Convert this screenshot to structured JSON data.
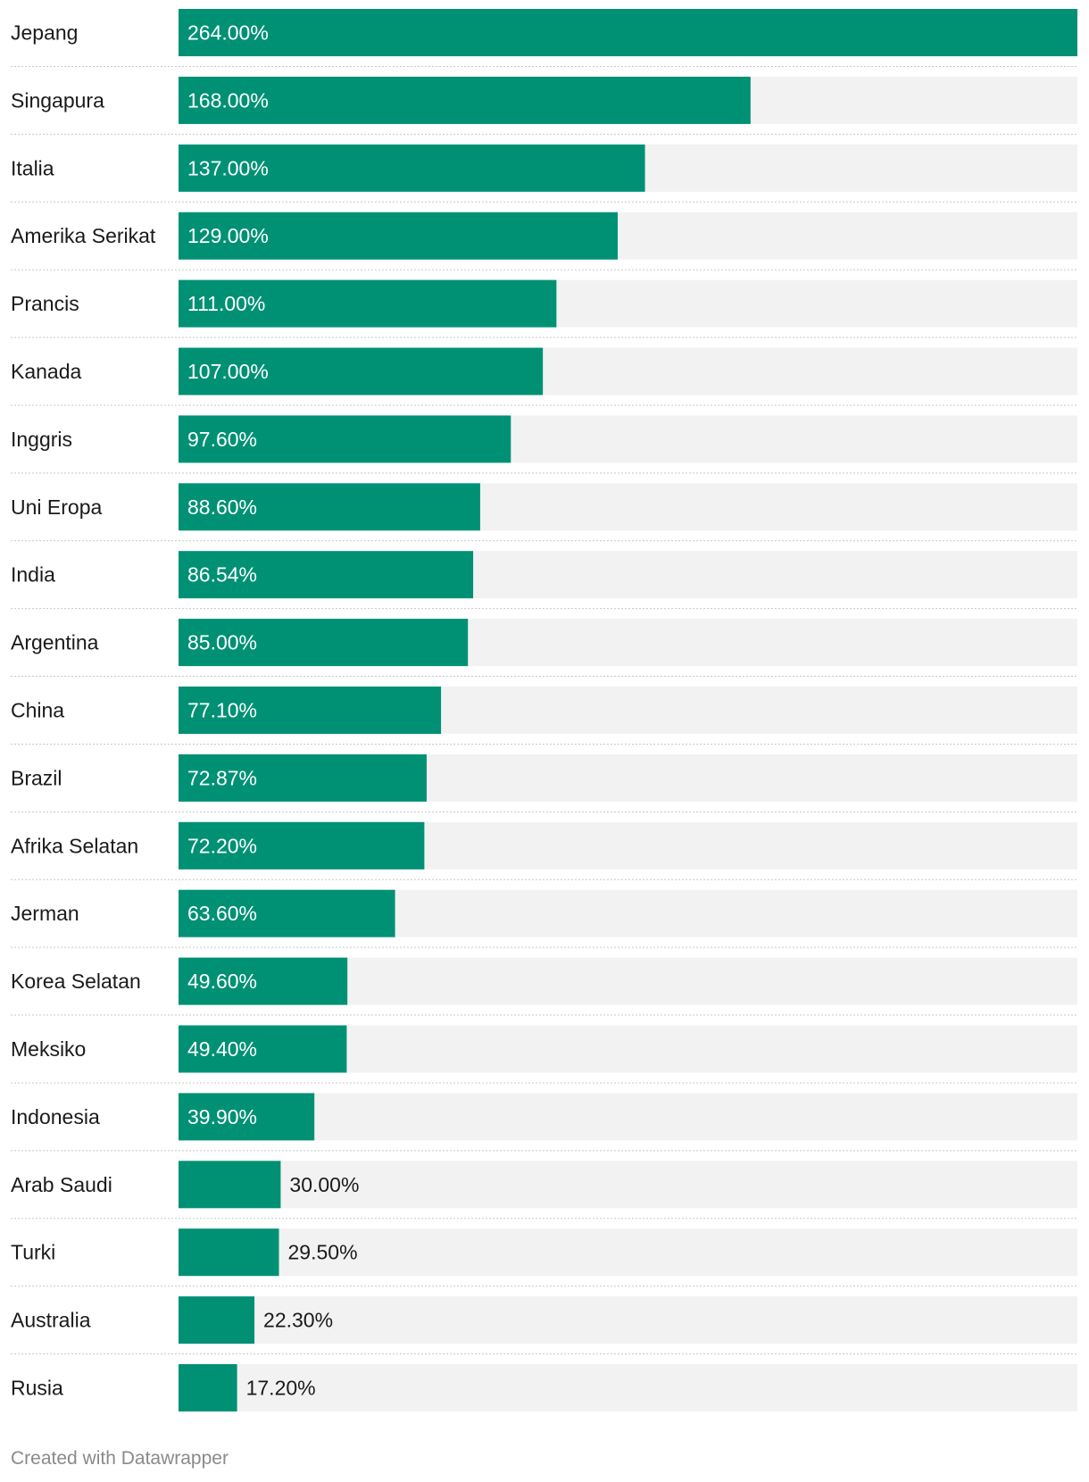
{
  "chart_data": {
    "type": "bar",
    "orientation": "horizontal",
    "categories": [
      "Jepang",
      "Singapura",
      "Italia",
      "Amerika Serikat",
      "Prancis",
      "Kanada",
      "Inggris",
      "Uni Eropa",
      "India",
      "Argentina",
      "China",
      "Brazil",
      "Afrika Selatan",
      "Jerman",
      "Korea Selatan",
      "Meksiko",
      "Indonesia",
      "Arab Saudi",
      "Turki",
      "Australia",
      "Rusia"
    ],
    "values": [
      264.0,
      168.0,
      137.0,
      129.0,
      111.0,
      107.0,
      97.6,
      88.6,
      86.54,
      85.0,
      77.1,
      72.87,
      72.2,
      63.6,
      49.6,
      49.4,
      39.9,
      30.0,
      29.5,
      22.3,
      17.2
    ],
    "value_labels": [
      "264.00%",
      "168.00%",
      "137.00%",
      "129.00%",
      "111.00%",
      "107.00%",
      "97.60%",
      "88.60%",
      "86.54%",
      "85.00%",
      "77.10%",
      "72.87%",
      "72.20%",
      "63.60%",
      "49.60%",
      "49.40%",
      "39.90%",
      "30.00%",
      "29.50%",
      "22.30%",
      "17.20%"
    ],
    "xlim": [
      0,
      264
    ],
    "grid": false,
    "legend": "none",
    "colors": {
      "bar": "#009175",
      "track": "#f2f2f2",
      "label_inside": "#ffffff",
      "label_outside": "#1a1a1a",
      "divider": "#c8c8c8"
    }
  },
  "footer": {
    "credit": "Created with Datawrapper"
  }
}
